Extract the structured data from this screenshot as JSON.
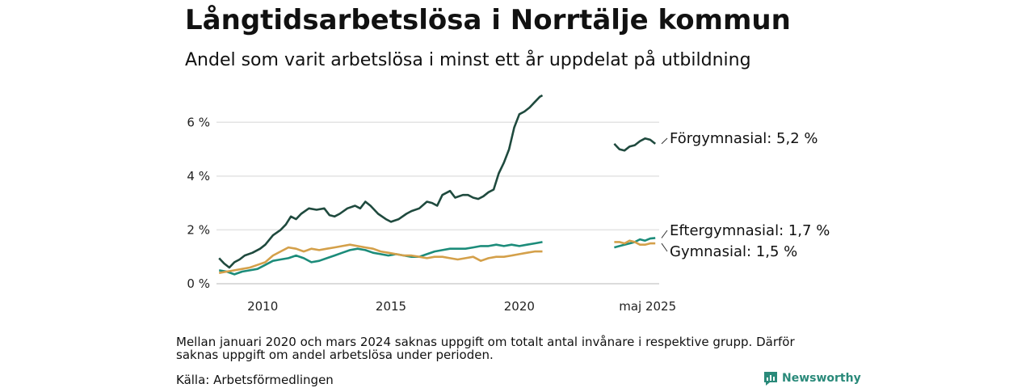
{
  "title": "Långtidsarbetslösa i Norrtälje kommun",
  "subtitle": "Andel som varit arbetslösa i minst ett år uppdelat på utbildning",
  "note": "Mellan januari 2020 och mars 2024 saknas uppgift om totalt antal invånare i respektive grupp. Därför saknas uppgift om andel arbetslösa under perioden.",
  "source": "Källa: Arbetsförmedlingen",
  "brand": {
    "label": "Newsworthy",
    "icon": "newsworthy-logo-icon",
    "color": "#2a8a7a"
  },
  "chart_data": {
    "type": "line",
    "x_ticks": [
      "2010",
      "2015",
      "2020",
      "maj 2025"
    ],
    "y_ticks": [
      "0 %",
      "2 %",
      "4 %",
      "6 %"
    ],
    "ylim": [
      0,
      7
    ],
    "grid": true,
    "series": [
      {
        "name": "Förgymnasial",
        "end_label": "Förgymnasial: 5,2 %",
        "color": "#1f4a3e",
        "x": [
          2008.3,
          2008.5,
          2008.7,
          2008.9,
          2009.1,
          2009.3,
          2009.6,
          2009.9,
          2010.1,
          2010.4,
          2010.7,
          2010.9,
          2011.1,
          2011.3,
          2011.5,
          2011.8,
          2012.1,
          2012.4,
          2012.6,
          2012.8,
          2013.0,
          2013.3,
          2013.6,
          2013.8,
          2014.0,
          2014.2,
          2014.5,
          2014.8,
          2015.0,
          2015.3,
          2015.6,
          2015.8,
          2016.1,
          2016.4,
          2016.6,
          2016.8,
          2017.0,
          2017.3,
          2017.5,
          2017.8,
          2018.0,
          2018.2,
          2018.4,
          2018.6,
          2018.8,
          2019.0,
          2019.2,
          2019.4,
          2019.6,
          2019.8,
          2020.0,
          2020.2,
          2020.4,
          2020.6,
          2020.8,
          2020.9
        ],
        "values": [
          0.95,
          0.75,
          0.6,
          0.8,
          0.9,
          1.05,
          1.15,
          1.3,
          1.45,
          1.8,
          2.0,
          2.2,
          2.5,
          2.4,
          2.6,
          2.8,
          2.75,
          2.8,
          2.55,
          2.5,
          2.6,
          2.8,
          2.9,
          2.8,
          3.05,
          2.9,
          2.6,
          2.4,
          2.3,
          2.4,
          2.6,
          2.7,
          2.8,
          3.05,
          3.0,
          2.9,
          3.3,
          3.45,
          3.2,
          3.3,
          3.3,
          3.2,
          3.15,
          3.25,
          3.4,
          3.5,
          4.1,
          4.5,
          5.0,
          5.8,
          6.3,
          6.4,
          6.55,
          6.75,
          6.95,
          7.0
        ],
        "end_segment_x": [
          2023.7,
          2023.9,
          2024.1,
          2024.3,
          2024.5,
          2024.7,
          2024.9,
          2025.1,
          2025.3
        ],
        "end_segment_values": [
          5.2,
          5.0,
          4.95,
          5.1,
          5.15,
          5.3,
          5.4,
          5.35,
          5.2
        ]
      },
      {
        "name": "Eftergymnasial",
        "end_label": "Eftergymnasial: 1,7 %",
        "color": "#1c8c7a",
        "x": [
          2008.3,
          2008.6,
          2008.9,
          2009.2,
          2009.5,
          2009.8,
          2010.1,
          2010.4,
          2010.7,
          2011.0,
          2011.3,
          2011.6,
          2011.9,
          2012.2,
          2012.5,
          2012.8,
          2013.1,
          2013.4,
          2013.7,
          2014.0,
          2014.3,
          2014.6,
          2014.9,
          2015.2,
          2015.5,
          2015.8,
          2016.1,
          2016.4,
          2016.7,
          2017.0,
          2017.3,
          2017.6,
          2017.9,
          2018.2,
          2018.5,
          2018.8,
          2019.1,
          2019.4,
          2019.7,
          2020.0,
          2020.3,
          2020.6,
          2020.9
        ],
        "values": [
          0.5,
          0.45,
          0.35,
          0.45,
          0.5,
          0.55,
          0.7,
          0.85,
          0.9,
          0.95,
          1.05,
          0.95,
          0.8,
          0.85,
          0.95,
          1.05,
          1.15,
          1.25,
          1.3,
          1.25,
          1.15,
          1.1,
          1.05,
          1.1,
          1.05,
          1.0,
          1.0,
          1.1,
          1.2,
          1.25,
          1.3,
          1.3,
          1.3,
          1.35,
          1.4,
          1.4,
          1.45,
          1.4,
          1.45,
          1.4,
          1.45,
          1.5,
          1.55
        ],
        "end_segment_x": [
          2023.7,
          2023.9,
          2024.1,
          2024.3,
          2024.5,
          2024.7,
          2024.9,
          2025.1,
          2025.3
        ],
        "end_segment_values": [
          1.35,
          1.4,
          1.45,
          1.5,
          1.55,
          1.65,
          1.6,
          1.68,
          1.7
        ]
      },
      {
        "name": "Gymnasial",
        "end_label": "Gymnasial: 1,5 %",
        "color": "#d4a04a",
        "x": [
          2008.3,
          2008.6,
          2008.9,
          2009.2,
          2009.5,
          2009.8,
          2010.1,
          2010.4,
          2010.7,
          2011.0,
          2011.3,
          2011.6,
          2011.9,
          2012.2,
          2012.5,
          2012.8,
          2013.1,
          2013.4,
          2013.7,
          2014.0,
          2014.3,
          2014.6,
          2014.9,
          2015.2,
          2015.5,
          2015.8,
          2016.1,
          2016.4,
          2016.7,
          2017.0,
          2017.3,
          2017.6,
          2017.9,
          2018.2,
          2018.5,
          2018.8,
          2019.1,
          2019.4,
          2019.7,
          2020.0,
          2020.3,
          2020.6,
          2020.9
        ],
        "values": [
          0.4,
          0.45,
          0.5,
          0.55,
          0.6,
          0.7,
          0.8,
          1.05,
          1.2,
          1.35,
          1.3,
          1.2,
          1.3,
          1.25,
          1.3,
          1.35,
          1.4,
          1.45,
          1.4,
          1.35,
          1.3,
          1.2,
          1.15,
          1.1,
          1.05,
          1.05,
          1.0,
          0.95,
          1.0,
          1.0,
          0.95,
          0.9,
          0.95,
          1.0,
          0.85,
          0.95,
          1.0,
          1.0,
          1.05,
          1.1,
          1.15,
          1.2,
          1.2
        ],
        "end_segment_x": [
          2023.7,
          2023.9,
          2024.1,
          2024.3,
          2024.5,
          2024.7,
          2024.9,
          2025.1,
          2025.3
        ],
        "end_segment_values": [
          1.55,
          1.55,
          1.5,
          1.6,
          1.55,
          1.45,
          1.45,
          1.5,
          1.5
        ]
      }
    ]
  }
}
